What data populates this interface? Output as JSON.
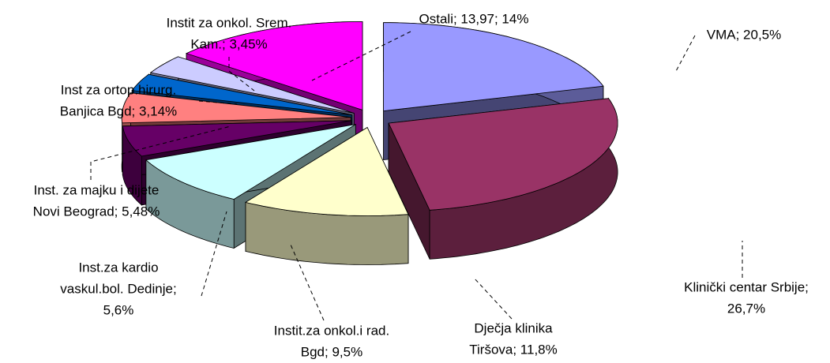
{
  "chart_data": {
    "type": "pie",
    "values": [
      20.5,
      26.7,
      11.8,
      9.5,
      5.6,
      5.48,
      3.14,
      3.45,
      13.97
    ],
    "value_labels": [
      [
        "VMA; 20,5%"
      ],
      [
        "Klinički centar Srbije;",
        "26,7%"
      ],
      [
        "Dječja klinika",
        "Tiršova; 11,8%"
      ],
      [
        "Instit.za onkol.i rad.",
        "Bgd; 9,5%"
      ],
      [
        "Inst.za kardio",
        "vaskul.bol. Dedinje;",
        "5,6%"
      ],
      [
        "Inst. za majku i dijete",
        "Novi Beograd; 5,48%"
      ],
      [
        "Inst za ortop.hirurg.",
        "Banjica Bgd; 3,14%"
      ],
      [
        "Instit za onkol. Srem.",
        "Kam.; 3,45%"
      ],
      [
        "Ostali; 13,97; 14%"
      ]
    ],
    "colors": [
      "#9999ff",
      "#993366",
      "#ffffcc",
      "#ccffff",
      "#660066",
      "#ff8080",
      "#0066cc",
      "#ccccff",
      "#ff00ff"
    ]
  }
}
